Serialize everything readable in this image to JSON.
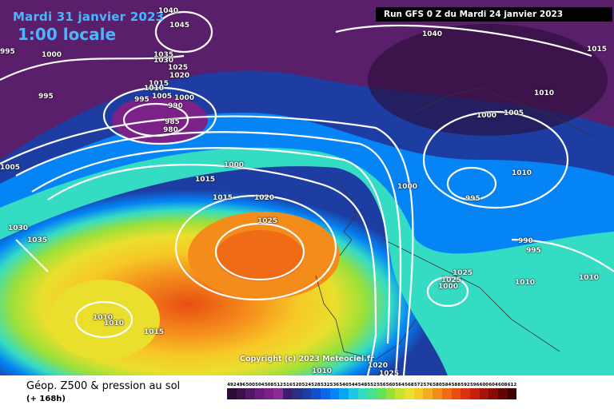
{
  "header": {
    "date_line": "Mardi 31 janvier 2023",
    "time_line": "1:00 locale",
    "run_line": "Run GFS 0 Z du Mardi 24 janvier 2023"
  },
  "map": {
    "copyright": "Copyright (c) 2023 Meteociel.fr",
    "pressure_labels": [
      "1040",
      "1045",
      "1035",
      "1030",
      "1025",
      "1020",
      "1015",
      "1010",
      "1005",
      "1000",
      "995",
      "990",
      "985",
      "980",
      "1000",
      "995",
      "1000",
      "1015",
      "1015",
      "1020",
      "1025",
      "1030",
      "1035",
      "1040",
      "1015",
      "1010",
      "1000",
      "1005",
      "1010",
      "995",
      "1000",
      "990",
      "995",
      "1010",
      "1010",
      "1010",
      "1010",
      "1015",
      "1010",
      "1020",
      "1025",
      "1025",
      "1025",
      "1000",
      "995",
      "1005"
    ]
  },
  "legend": {
    "title": "Géop. Z500 & pression au sol",
    "subtitle": "(+ 168h)",
    "scale_values": [
      "492",
      "496",
      "500",
      "504",
      "508",
      "512",
      "516",
      "520",
      "524",
      "528",
      "532",
      "536",
      "540",
      "544",
      "548",
      "552",
      "556",
      "560",
      "564",
      "568",
      "572",
      "576",
      "580",
      "584",
      "588",
      "592",
      "596",
      "600",
      "604",
      "608",
      "612"
    ],
    "scale_colors": [
      "#2a0b35",
      "#3d0f4b",
      "#541566",
      "#6a1c7a",
      "#7b2188",
      "#8b2b93",
      "#3b1f6e",
      "#2a2f86",
      "#1d3da3",
      "#1150c8",
      "#0a67e6",
      "#0484f5",
      "#08a6f2",
      "#1cc8e6",
      "#35dcc4",
      "#48e08f",
      "#67e05a",
      "#9ae03a",
      "#c8e232",
      "#eadf2d",
      "#f7c927",
      "#f7ad22",
      "#f48c1c",
      "#ef6b16",
      "#e84e12",
      "#db330e",
      "#c6200c",
      "#a4140a",
      "#870c08",
      "#620604",
      "#3e0202"
    ]
  }
}
